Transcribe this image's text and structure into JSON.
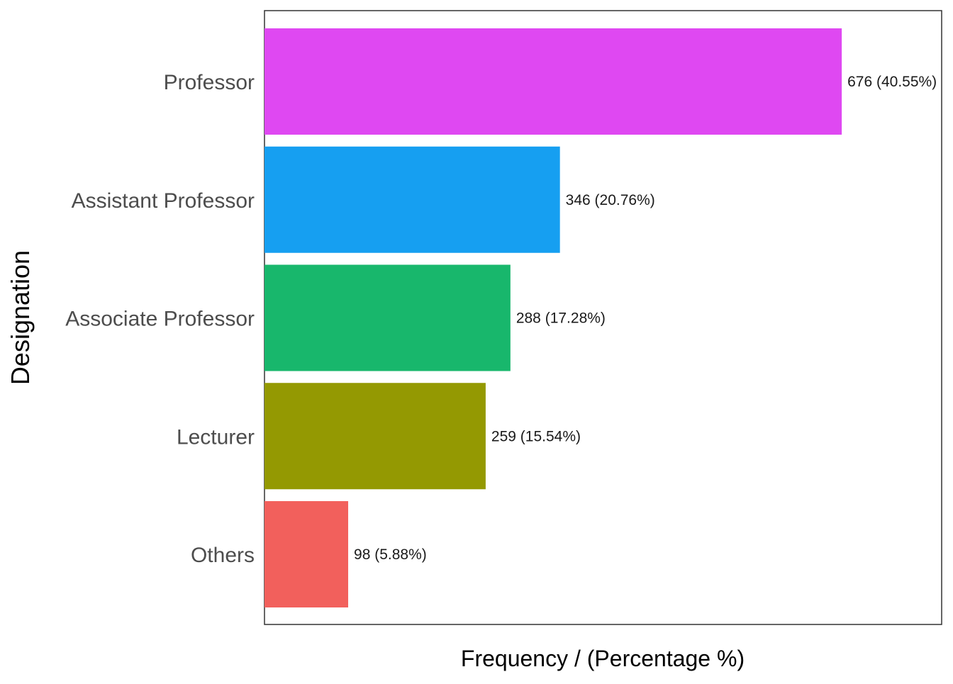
{
  "chart_data": {
    "type": "bar",
    "orientation": "horizontal",
    "categories": [
      "Professor",
      "Assistant Professor",
      "Associate Professor",
      "Lecturer",
      "Others"
    ],
    "values": [
      676,
      346,
      288,
      259,
      98
    ],
    "percentages": [
      40.55,
      20.76,
      17.28,
      15.54,
      5.88
    ],
    "data_labels": [
      "676 (40.55%)",
      "346 (20.76%)",
      "288 (17.28%)",
      "259 (15.54%)",
      "98 (5.88%)"
    ],
    "colors": [
      "#DF48F2",
      "#169FF1",
      "#18B76C",
      "#949902",
      "#F2605C"
    ],
    "xlabel": "Frequency / (Percentage %)",
    "ylabel": "Designation",
    "xlim": [
      0,
      793
    ],
    "grid": false,
    "legend": "none",
    "x_tick_labels": false
  }
}
